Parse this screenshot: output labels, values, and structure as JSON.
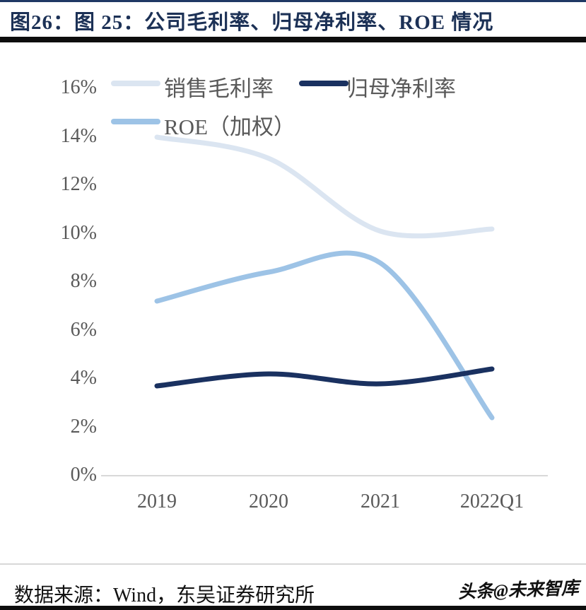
{
  "title": "图26：图 25：公司毛利率、归母净利率、ROE 情况",
  "footer": {
    "source": "数据来源：Wind，东吴证券研究所",
    "watermark": "头条@未来智库"
  },
  "colors": {
    "title_text": "#1c3156",
    "top_border": "#1f3864",
    "rule_black": "#0d0d0d",
    "axis_text": "#595959",
    "axis_line": "#d9d9d9",
    "series_gross_margin": "#dbe5f1",
    "series_net_margin": "#1a3160",
    "series_roe": "#9dc3e6"
  },
  "chart_data": {
    "type": "line",
    "smooth": true,
    "categories": [
      "2019",
      "2020",
      "2021",
      "2022Q1"
    ],
    "series": [
      {
        "name": "销售毛利率",
        "values": [
          14.0,
          13.1,
          10.1,
          10.2
        ],
        "color": "#dbe5f1"
      },
      {
        "name": "归母净利率",
        "values": [
          3.7,
          4.2,
          3.8,
          4.4
        ],
        "color": "#1a3160"
      },
      {
        "name": "ROE（加权）",
        "values": [
          7.2,
          8.4,
          8.8,
          2.4
        ],
        "color": "#9dc3e6"
      }
    ],
    "ylabel_ticks": [
      "16%",
      "14%",
      "12%",
      "10%",
      "8%",
      "6%",
      "4%",
      "2%",
      "0%"
    ],
    "ylim": [
      0,
      16
    ],
    "ytick_step": 2,
    "grid": false,
    "legend_position": "top-left",
    "notes": "ROE smoothed curve overshoots to ~9.2% between 2020 and 2021 before plunging to 2.4% in 2022Q1"
  }
}
